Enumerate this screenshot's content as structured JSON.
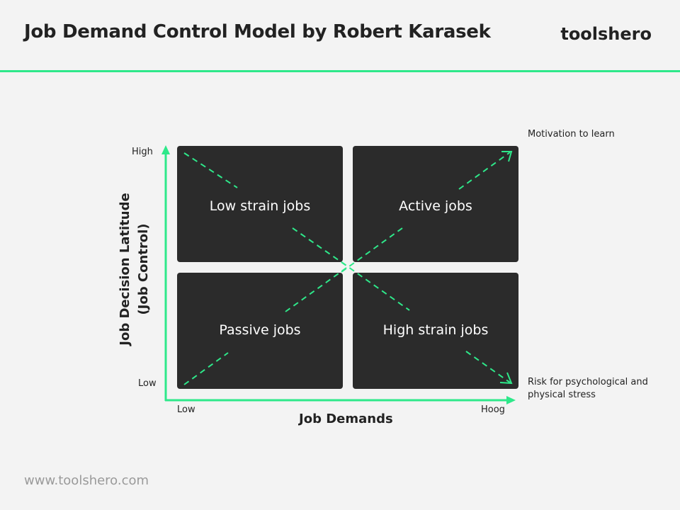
{
  "header": {
    "title": "Job Demand Control Model by Robert Karasek",
    "brand": "toolshero"
  },
  "footer": {
    "url": "www.toolshero.com"
  },
  "diagram": {
    "quadrants": {
      "top_left": "Low strain jobs",
      "top_right": "Active jobs",
      "bottom_left": "Passive jobs",
      "bottom_right": "High strain jobs"
    },
    "y_axis": {
      "title_line1": "Job Decision Latitude",
      "title_line2": "(Job Control)",
      "high": "High",
      "low": "Low"
    },
    "x_axis": {
      "title": "Job Demands",
      "low": "Low",
      "high": "Hoog"
    },
    "annotations": {
      "top_right": "Motivation to learn",
      "bottom_right_line1": "Risk for psychological and",
      "bottom_right_line2": "physical stress"
    },
    "colors": {
      "accent": "#2ee88a",
      "quadrant_fill": "#2b2b2b",
      "background": "#f3f3f3"
    }
  }
}
